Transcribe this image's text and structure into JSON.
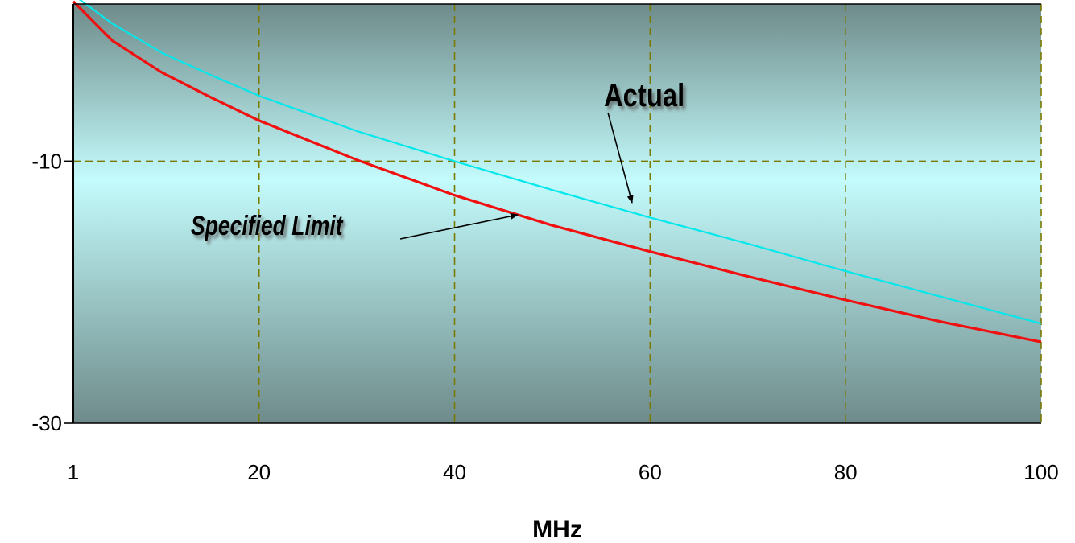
{
  "chart_data": {
    "type": "line",
    "title": "",
    "xlabel": "MHz",
    "ylabel": "",
    "xlim": [
      1,
      100
    ],
    "ylim": [
      -30,
      2
    ],
    "x_ticks": [
      1,
      20,
      40,
      60,
      80,
      100
    ],
    "y_ticks": [
      -10,
      -30
    ],
    "grid": true,
    "background": {
      "edge": "#6e8b8a",
      "center": "#c4fbfc"
    },
    "series": [
      {
        "name": "Actual",
        "color": "#00e8ec",
        "x": [
          1,
          5,
          10,
          15,
          20,
          30,
          40,
          50,
          60,
          70,
          80,
          90,
          100
        ],
        "y": [
          2.7,
          0.5,
          -1.7,
          -3.4,
          -5.0,
          -7.7,
          -10.0,
          -12.2,
          -14.3,
          -16.3,
          -18.4,
          -20.4,
          -22.4
        ]
      },
      {
        "name": "Specified Limit",
        "color": "#f01010",
        "x": [
          1,
          5,
          10,
          15,
          20,
          30,
          40,
          50,
          60,
          70,
          80,
          90,
          100
        ],
        "y": [
          2.2,
          -0.8,
          -3.2,
          -5.1,
          -6.9,
          -9.9,
          -12.6,
          -14.9,
          -16.9,
          -18.8,
          -20.6,
          -22.3,
          -23.8
        ]
      }
    ],
    "annotations": [
      {
        "text": "Actual",
        "series": "Actual",
        "at_x": 58
      },
      {
        "text": "Specified Limit",
        "series": "Specified Limit",
        "at_x": 46
      }
    ]
  }
}
